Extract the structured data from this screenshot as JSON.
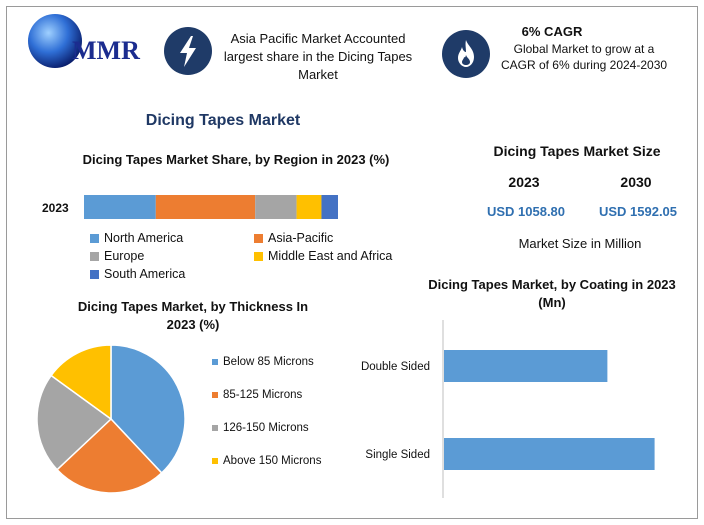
{
  "logo": {
    "text": "MMR"
  },
  "callouts": {
    "region": {
      "text": "Asia Pacific Market Accounted largest share in the Dicing Tapes Market",
      "icon": "lightning-icon"
    },
    "cagr": {
      "title": "6% CAGR",
      "text": "Global Market to grow at a CAGR of 6% during 2024-2030",
      "icon": "flame-icon"
    }
  },
  "main_title": "Dicing Tapes Market",
  "market_size": {
    "title": "Dicing Tapes Market Size",
    "year_a": "2023",
    "year_b": "2030",
    "value_a": "USD 1058.80",
    "value_b": "USD 1592.05",
    "note": "Market Size in Million"
  },
  "colors": {
    "accent_dark": "#1f3864",
    "blue": "#5b9bd5",
    "orange": "#ed7d31",
    "gray": "#a5a5a5",
    "yellow": "#ffc000",
    "dark_blue": "#4472c4"
  },
  "chart_data": [
    {
      "id": "region",
      "type": "bar",
      "orientation": "horizontal-stacked",
      "title": "Dicing Tapes Market Share, by Region in 2023 (%)",
      "categories": [
        "2023"
      ],
      "series": [
        {
          "name": "North America",
          "values": [
            26
          ],
          "color": "#5b9bd5"
        },
        {
          "name": "Asia-Pacific",
          "values": [
            36
          ],
          "color": "#ed7d31"
        },
        {
          "name": "Europe",
          "values": [
            15
          ],
          "color": "#a5a5a5"
        },
        {
          "name": "Middle East and Africa",
          "values": [
            9
          ],
          "color": "#ffc000"
        },
        {
          "name": "South America",
          "values": [
            6
          ],
          "color": "#4472c4"
        }
      ],
      "legend_position": "bottom"
    },
    {
      "id": "thickness",
      "type": "pie",
      "title": "Dicing Tapes Market, by Thickness In 2023 (%)",
      "slices": [
        {
          "name": "Below 85 Microns",
          "value": 38,
          "color": "#5b9bd5"
        },
        {
          "name": "85-125 Microns",
          "value": 25,
          "color": "#ed7d31"
        },
        {
          "name": "126-150 Microns",
          "value": 22,
          "color": "#a5a5a5"
        },
        {
          "name": "Above 150 Microns",
          "value": 15,
          "color": "#ffc000"
        }
      ],
      "legend_position": "right"
    },
    {
      "id": "coating",
      "type": "bar",
      "orientation": "horizontal",
      "title": "Dicing Tapes Market, by Coating in 2023 (Mn)",
      "categories": [
        "Double Sided",
        "Single Sided"
      ],
      "values": [
        450,
        580
      ],
      "xlim": [
        0,
        650
      ],
      "color": "#5b9bd5"
    }
  ]
}
